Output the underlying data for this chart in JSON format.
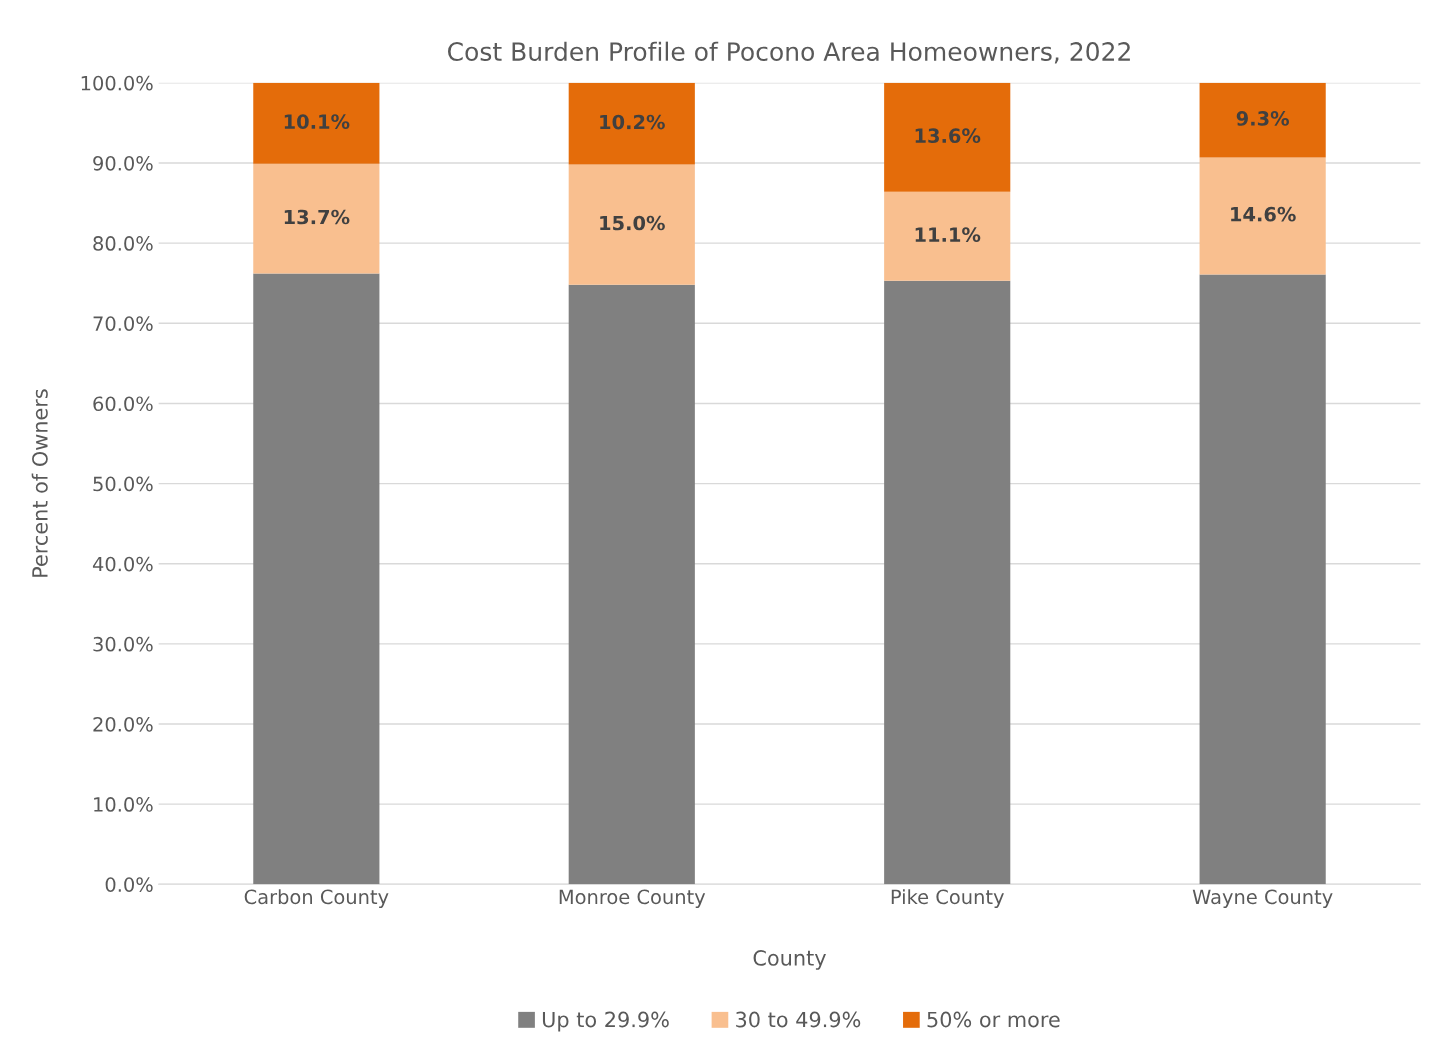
{
  "chart_data": {
    "type": "bar",
    "stacked": true,
    "title": "Cost Burden Profile of Pocono Area Homeowners, 2022",
    "xlabel": "County",
    "ylabel": "Percent of Owners",
    "categories": [
      "Carbon County",
      "Monroe County",
      "Pike County",
      "Wayne County"
    ],
    "series": [
      {
        "name": "Up to 29.9%",
        "color": "#808080",
        "values": [
          76.2,
          74.8,
          75.3,
          76.1
        ]
      },
      {
        "name": "30 to 49.9%",
        "color": "#f9bf8f",
        "values": [
          13.7,
          15.0,
          11.1,
          14.6
        ],
        "value_labels": [
          "13.7%",
          "15.0%",
          "11.1%",
          "14.6%"
        ]
      },
      {
        "name": "50% or more",
        "color": "#e46c0a",
        "values": [
          10.1,
          10.2,
          13.6,
          9.3
        ],
        "value_labels": [
          "10.1%",
          "10.2%",
          "13.6%",
          "9.3%"
        ]
      }
    ],
    "ylim": [
      0,
      100
    ],
    "yticks": [
      {
        "value": 0,
        "label": "0.0%"
      },
      {
        "value": 10,
        "label": "10.0%"
      },
      {
        "value": 20,
        "label": "20.0%"
      },
      {
        "value": 30,
        "label": "30.0%"
      },
      {
        "value": 40,
        "label": "40.0%"
      },
      {
        "value": 50,
        "label": "50.0%"
      },
      {
        "value": 60,
        "label": "60.0%"
      },
      {
        "value": 70,
        "label": "70.0%"
      },
      {
        "value": 80,
        "label": "80.0%"
      },
      {
        "value": 90,
        "label": "90.0%"
      },
      {
        "value": 100,
        "label": "100.0%"
      }
    ],
    "grid": "y",
    "legend": "bottom"
  }
}
